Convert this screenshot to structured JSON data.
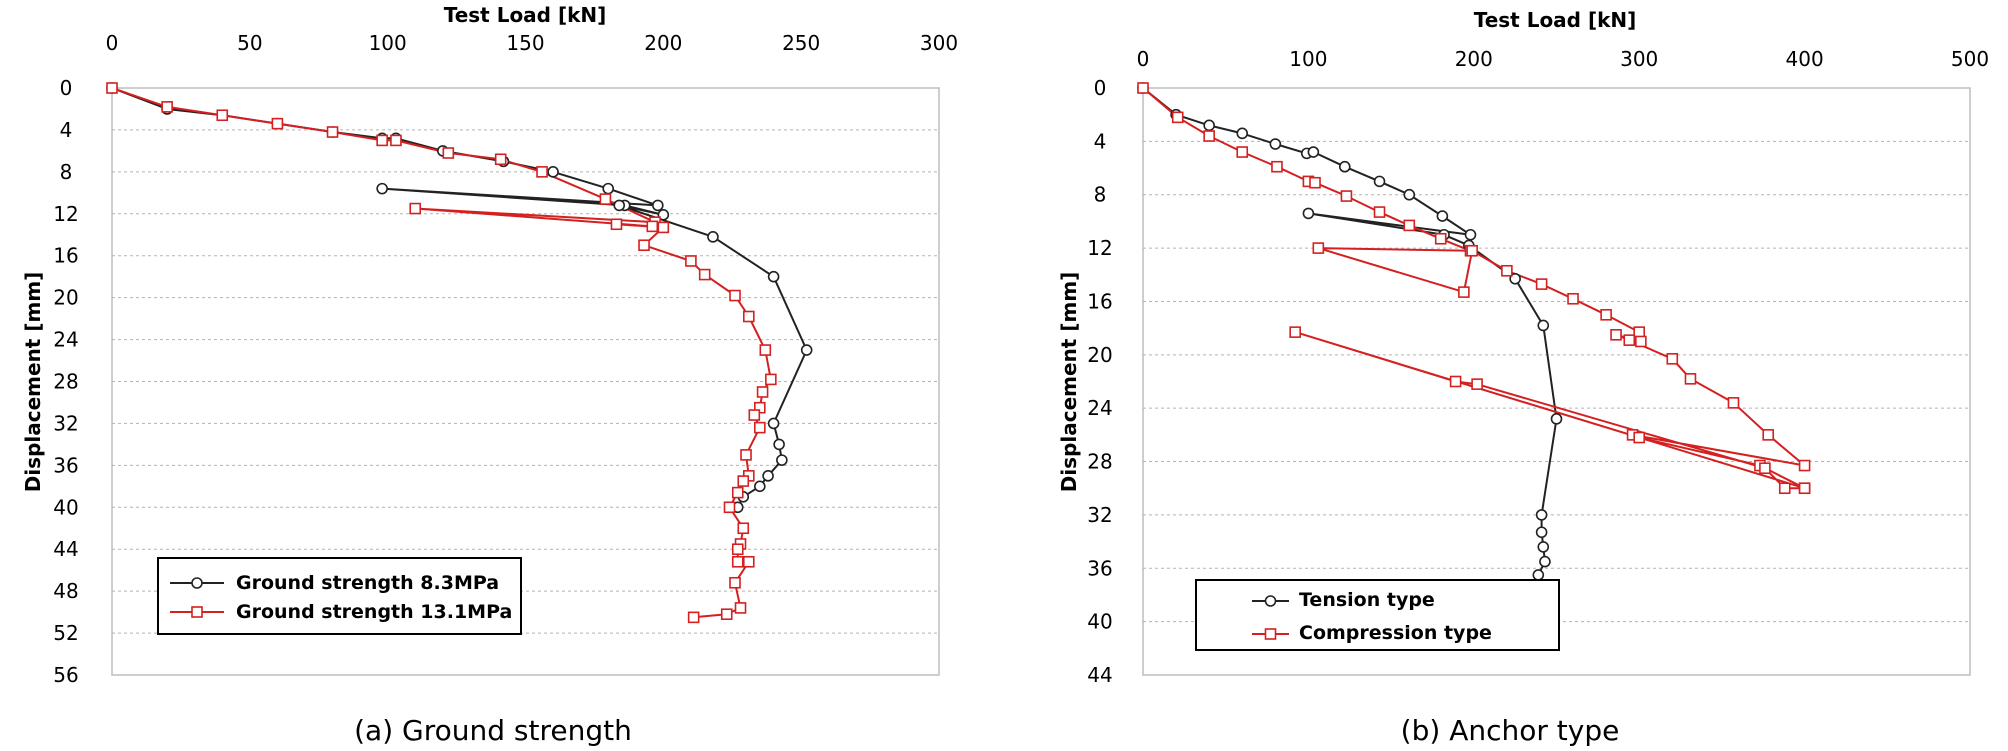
{
  "colors": {
    "series_black": "#222222",
    "series_red": "#d42020",
    "marker_fill": "#ffffff"
  },
  "chart_data": [
    {
      "type": "line",
      "caption": "(a) Ground strength",
      "xlabel": "Test Load [kN]",
      "ylabel": "Displacement [mm]",
      "xlim": [
        0,
        300
      ],
      "ylim": [
        0,
        56
      ],
      "xticks": [
        0,
        50,
        100,
        150,
        200,
        250,
        300
      ],
      "yticks": [
        0,
        4,
        8,
        12,
        16,
        20,
        24,
        28,
        32,
        36,
        40,
        44,
        48,
        52,
        56
      ],
      "y_inverted": true,
      "grid": "horizontal dashed",
      "legend_position": "bottom-left",
      "series": [
        {
          "name": "Ground strength 8.3MPa",
          "color": "#222222",
          "marker": "circle",
          "x": [
            0,
            20,
            40,
            60,
            80,
            98,
            103,
            120,
            142,
            160,
            180,
            198,
            98,
            186,
            200,
            184,
            218,
            240,
            252,
            240,
            242,
            243,
            238,
            235,
            229,
            227
          ],
          "y": [
            0,
            2,
            2.6,
            3.4,
            4.2,
            4.8,
            4.8,
            6,
            7,
            8,
            9.6,
            11.2,
            9.6,
            11.2,
            12.1,
            11.2,
            14.2,
            18,
            25,
            32,
            34,
            35.5,
            37,
            38,
            39,
            40
          ]
        },
        {
          "name": "Ground strength 13.1MPa",
          "color": "#d42020",
          "marker": "square",
          "x": [
            0,
            20,
            40,
            60,
            80,
            98,
            103,
            122,
            141,
            156,
            179,
            197,
            110,
            196,
            183,
            200,
            193,
            210,
            215,
            226,
            231,
            237,
            239,
            236,
            235,
            233,
            235,
            230,
            231,
            229,
            227,
            224,
            229,
            228,
            227,
            227,
            231,
            226,
            228,
            223,
            211
          ],
          "y": [
            0,
            1.8,
            2.6,
            3.4,
            4.2,
            5,
            5,
            6.2,
            6.8,
            8,
            10.6,
            12.8,
            11.5,
            13.2,
            13,
            13.3,
            15,
            16.5,
            17.8,
            19.8,
            21.8,
            25,
            27.8,
            29,
            30.5,
            31.2,
            32.4,
            35,
            37,
            37.5,
            38.6,
            40,
            42,
            43.5,
            44,
            45.2,
            45.2,
            47.2,
            49.6,
            50.2,
            50.5
          ]
        }
      ]
    },
    {
      "type": "line",
      "caption": "(b) Anchor type",
      "xlabel": "Test Load [kN]",
      "ylabel": "Displacement [mm]",
      "xlim": [
        0,
        500
      ],
      "ylim": [
        0,
        44
      ],
      "xticks": [
        0,
        100,
        200,
        300,
        400,
        500
      ],
      "yticks": [
        0,
        4,
        8,
        12,
        16,
        20,
        24,
        28,
        32,
        36,
        40,
        44
      ],
      "y_inverted": true,
      "grid": "horizontal dashed",
      "legend_position": "bottom-left",
      "series": [
        {
          "name": "Tension type",
          "color": "#222222",
          "marker": "circle",
          "x": [
            0,
            20,
            40,
            60,
            80,
            99,
            103,
            122,
            143,
            161,
            181,
            198,
            100,
            182,
            197,
            225,
            242,
            250,
            241,
            241,
            242,
            243,
            239
          ],
          "y": [
            0,
            2,
            2.8,
            3.4,
            4.2,
            4.9,
            4.8,
            5.9,
            7,
            8,
            9.6,
            11,
            9.4,
            11,
            11.8,
            14.3,
            17.8,
            24.8,
            32,
            33.3,
            34.4,
            35.5,
            36.5
          ]
        },
        {
          "name": "Compression type",
          "color": "#d42020",
          "marker": "square",
          "x": [
            0,
            21,
            40,
            60,
            81,
            100,
            104,
            123,
            143,
            161,
            180,
            198,
            106,
            194,
            199,
            220,
            241,
            260,
            280,
            300,
            301,
            286,
            294,
            320,
            331,
            357,
            378,
            400,
            296,
            300,
            373,
            400,
            92,
            189,
            202,
            376,
            388,
            400
          ],
          "y": [
            0,
            2.2,
            3.6,
            4.8,
            5.9,
            7,
            7.1,
            8.1,
            9.3,
            10.3,
            11.3,
            12.2,
            12,
            15.3,
            12.2,
            13.7,
            14.7,
            15.8,
            17,
            18.3,
            19,
            18.5,
            18.9,
            20.3,
            21.8,
            23.6,
            26,
            28.3,
            26,
            26.2,
            28.3,
            30,
            18.3,
            22,
            22.2,
            28.5,
            30,
            30
          ]
        }
      ]
    }
  ]
}
